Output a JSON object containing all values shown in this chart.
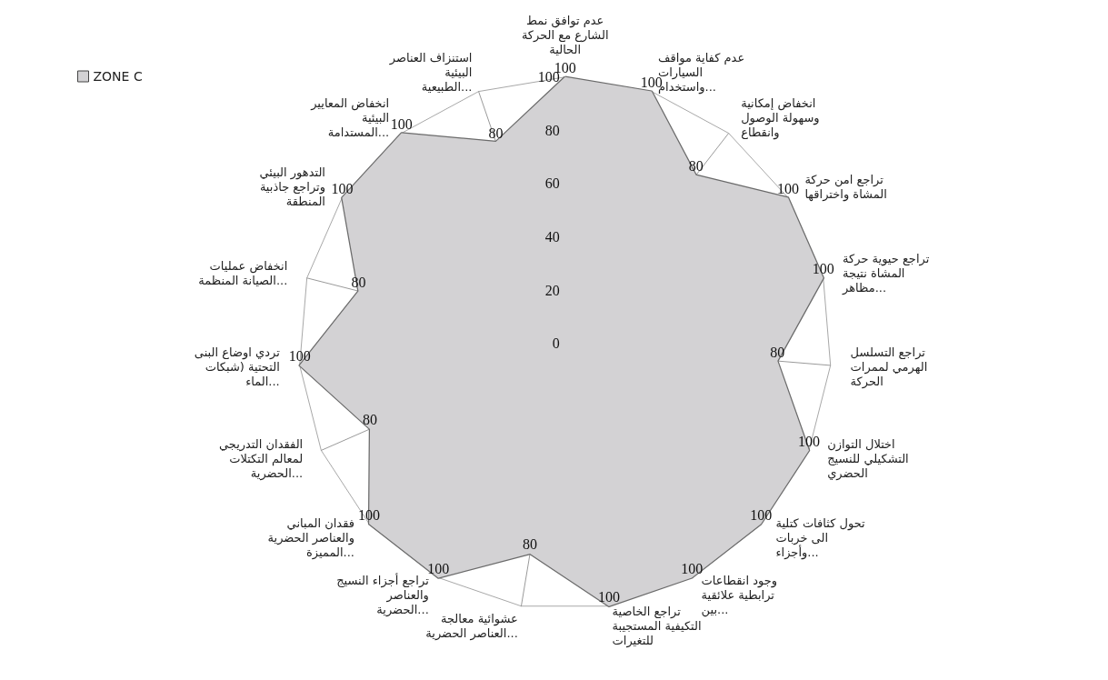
{
  "chart_data": {
    "type": "radar",
    "categories": [
      "عدم توافق نمط الشارع مع الحركة الحالية",
      "عدم كفاية مواقف السيارات واستخدام...",
      "انخفاض إمكانية وسهولة الوصول وانقطاع",
      "تراجع امن حركة المشاة واختراقها",
      "تراجع حيوية حركة المشاة نتيجة مظاهر...",
      "تراجع التسلسل الهرمي لممرات الحركة",
      "اختلال التوازن التشكيلي للنسيج الحضري",
      "تحول كثافات كتلية الى خربات وأجزاء...",
      "وجود انقطاعات ترابطية علائقية بين...",
      "تراجع الخاصية التكيفية المستجيبة للتغيرات",
      "عشوائية معالجة العناصر الحضرية...",
      "تراجع أجزاء النسيج والعناصر الحضرية...",
      "فقدان المباني والعناصر الحضرية المميزة...",
      "الفقدان التدريجي لمعالم التكتلات الحضرية...",
      "تردي اوضاع البنى التحتية (شبكات الماء...",
      "انخفاض عمليات الصيانة المنظمة...",
      "التدهور البيئي وتراجع جاذبية المنطقة",
      "انخفاض المعايير البيئية المستدامة...",
      "استنزاف العناصر البيئية الطبيعية..."
    ],
    "series": [
      {
        "name": "ZONE C",
        "color": "#d3d2d4",
        "values": [
          100,
          100,
          80,
          100,
          100,
          80,
          100,
          100,
          100,
          100,
          80,
          100,
          100,
          80,
          100,
          80,
          100,
          100,
          80
        ]
      }
    ],
    "ylim": [
      0,
      100
    ],
    "yticks": [
      0,
      20,
      40,
      60,
      80,
      100
    ],
    "grid": true,
    "legend": "top left",
    "data_labels": true,
    "marker": "none",
    "line_style": "solid"
  }
}
